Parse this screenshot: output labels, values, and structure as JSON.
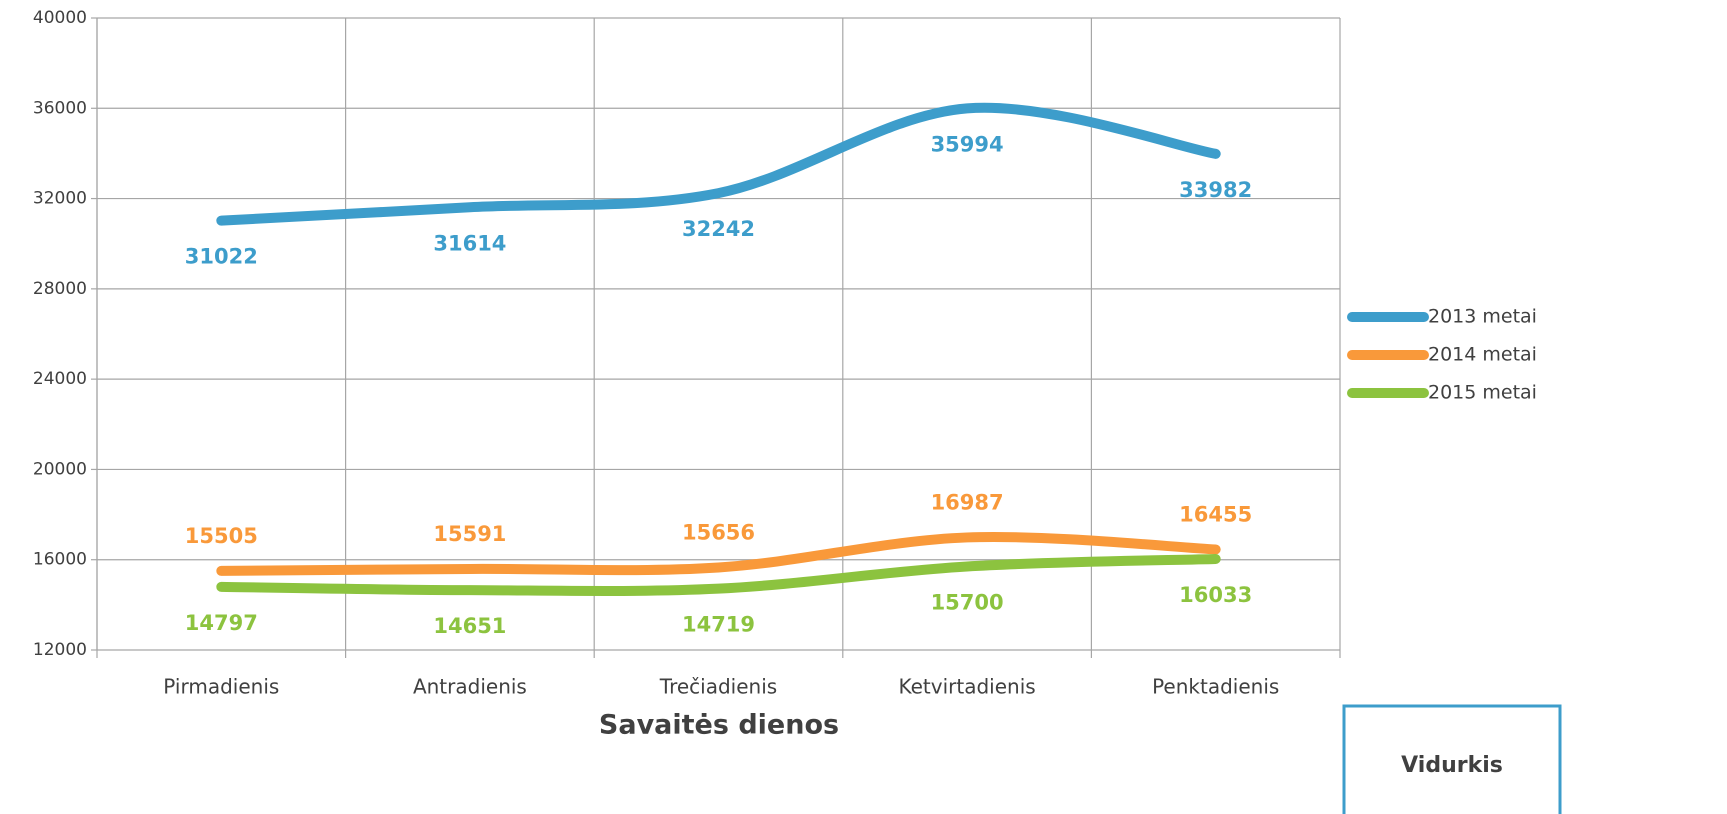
{
  "chart_data": {
    "type": "line",
    "categories": [
      "Pirmadienis",
      "Antradienis",
      "Trečiadienis",
      "Ketvirtadienis",
      "Penktadienis"
    ],
    "series": [
      {
        "name": "2013 metai",
        "color": "#3d9dcb",
        "values": [
          31022,
          31614,
          32242,
          35994,
          33982
        ]
      },
      {
        "name": "2014 metai",
        "color": "#f9993a",
        "values": [
          15505,
          15591,
          15656,
          16987,
          16455
        ]
      },
      {
        "name": "2015 metai",
        "color": "#8cc33f",
        "values": [
          14797,
          14651,
          14719,
          15700,
          16033
        ]
      }
    ],
    "xlabel": "Savaitės dienos",
    "ylim": [
      12000,
      40000
    ],
    "yticks": [
      12000,
      16000,
      20000,
      24000,
      28000,
      32000,
      36000,
      40000
    ],
    "grid": true,
    "smooth": true,
    "legend": "right",
    "box_text": "Vidurkis"
  }
}
